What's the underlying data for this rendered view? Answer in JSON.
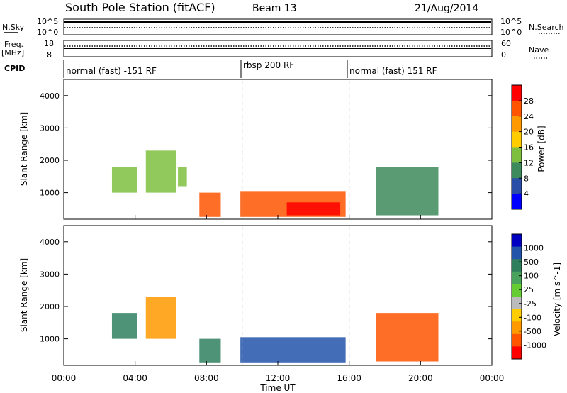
{
  "header": {
    "station": "South Pole Station (fitACF)",
    "beam": "Beam 13",
    "date": "21/Aug/2014"
  },
  "noise_panel": {
    "left_label": "N.Sky",
    "right_label": "N.Search",
    "left_ticks": [
      "10^5",
      "10^0"
    ],
    "right_ticks": [
      "10^5",
      "10^0"
    ]
  },
  "freq_panel": {
    "left_label_1": "Freq.",
    "left_label_2": "[MHz]",
    "right_label": "Nave",
    "left_ticks": [
      "18",
      "8"
    ],
    "right_ticks": [
      "60",
      "0"
    ]
  },
  "cpid": {
    "label": "CPID",
    "segments": [
      {
        "text": "normal (fast) -151 RF"
      },
      {
        "text": "rbsp 200 RF"
      },
      {
        "text": "normal (fast) 151 RF"
      }
    ]
  },
  "power_panel": {
    "ylabel": "Slant Range [km]",
    "colorbar_label": "Power [dB]",
    "colorbar_ticks": [
      "28",
      "24",
      "20",
      "16",
      "12",
      "8",
      "4"
    ],
    "colorbar_colors": [
      "#ff0000",
      "#ff5500",
      "#ff9900",
      "#ffcc00",
      "#7fbf3f",
      "#3d8a5c",
      "#2a4ea8",
      "#0000ff"
    ]
  },
  "velocity_panel": {
    "ylabel": "Slant Range [km]",
    "colorbar_label": "Velocity [m s^-1]",
    "colorbar_ticks": [
      "1000",
      "500",
      "100",
      "25",
      "-25",
      "-100",
      "-500",
      "-1000"
    ],
    "colorbar_colors": [
      "#0000c0",
      "#2255aa",
      "#2f7f5f",
      "#4aa35c",
      "#66cc33",
      "#bbbbbb",
      "#ffcc00",
      "#ff9900",
      "#ff5500",
      "#ff0000"
    ]
  },
  "xaxis": {
    "label": "Time UT",
    "ticks": [
      "00:00",
      "04:00",
      "08:00",
      "12:00",
      "16:00",
      "20:00",
      "00:00"
    ]
  },
  "chart_data": {
    "type": "heatmap",
    "x_range_hours": [
      0,
      24
    ],
    "y_range_km": [
      180,
      4500
    ],
    "y_ticks": [
      1000,
      2000,
      3000,
      4000
    ],
    "mode_boundaries_hours": [
      10,
      16
    ],
    "power_regions": [
      {
        "x0": 2.7,
        "x1": 4.1,
        "y0": 1000,
        "y1": 1800,
        "value": 12
      },
      {
        "x0": 4.6,
        "x1": 6.3,
        "y0": 1000,
        "y1": 2300,
        "value": 14
      },
      {
        "x0": 6.4,
        "x1": 6.9,
        "y0": 1200,
        "y1": 1800,
        "value": 12
      },
      {
        "x0": 7.6,
        "x1": 8.8,
        "y0": 250,
        "y1": 1000,
        "value": 24
      },
      {
        "x0": 9.9,
        "x1": 15.8,
        "y0": 250,
        "y1": 1050,
        "value": 24
      },
      {
        "x0": 12.5,
        "x1": 15.5,
        "y0": 300,
        "y1": 700,
        "value": 28
      },
      {
        "x0": 17.5,
        "x1": 21.0,
        "y0": 300,
        "y1": 1800,
        "value": 8
      }
    ],
    "velocity_regions": [
      {
        "x0": 2.7,
        "x1": 4.1,
        "y0": 1000,
        "y1": 1800,
        "value": 100
      },
      {
        "x0": 4.6,
        "x1": 6.3,
        "y0": 1000,
        "y1": 2300,
        "value": -100
      },
      {
        "x0": 7.6,
        "x1": 8.8,
        "y0": 250,
        "y1": 1000,
        "value": 100
      },
      {
        "x0": 9.9,
        "x1": 15.8,
        "y0": 250,
        "y1": 1050,
        "value": 500
      },
      {
        "x0": 17.5,
        "x1": 21.0,
        "y0": 300,
        "y1": 1800,
        "value": -500
      }
    ]
  }
}
